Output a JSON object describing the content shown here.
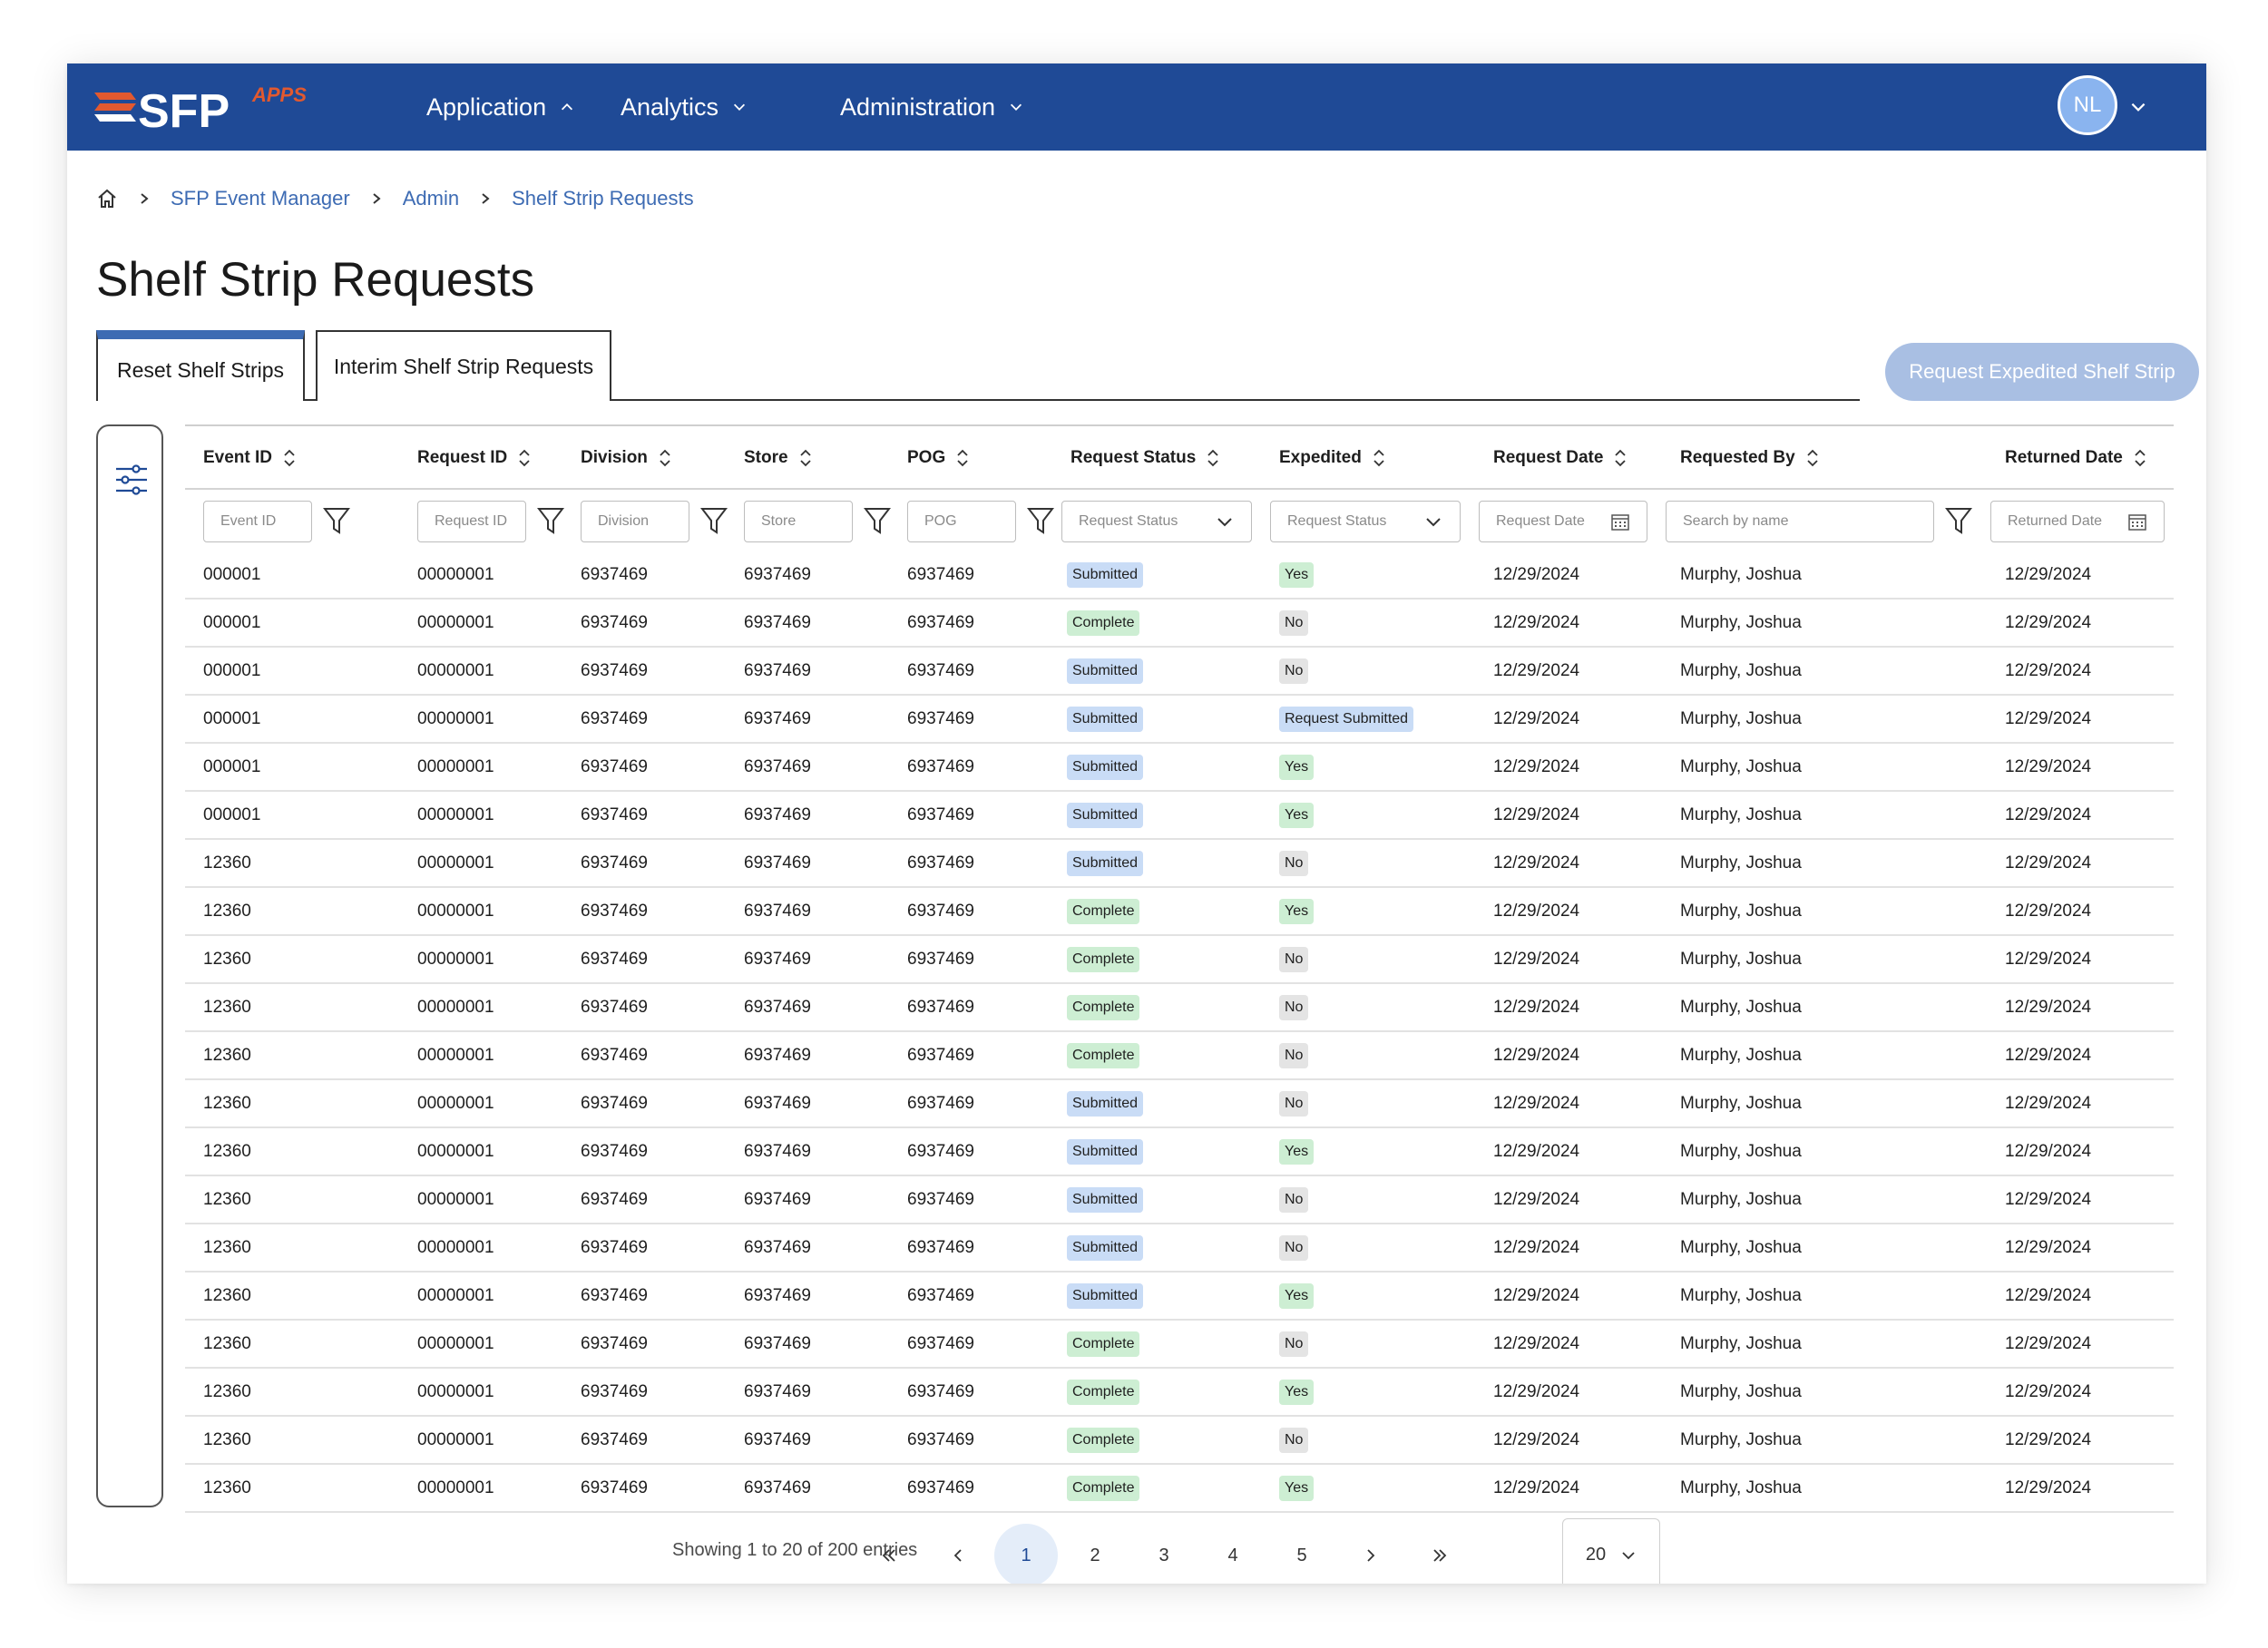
{
  "app": {
    "logo_text": "SFP",
    "logo_sub": "APPS",
    "nav": [
      {
        "label": "Application",
        "caret": "chevron-up"
      },
      {
        "label": "Analytics",
        "caret": "chevron-down"
      },
      {
        "label": "Administration",
        "caret": "chevron-down"
      }
    ],
    "user_initials": "NL"
  },
  "breadcrumb": {
    "items": [
      "SFP Event Manager",
      "Admin",
      "Shelf Strip Requests"
    ]
  },
  "page_title": "Shelf Strip Requests",
  "tabs": [
    {
      "label": "Reset Shelf Strips",
      "active": true
    },
    {
      "label": "Interim Shelf Strip Requests",
      "active": false
    }
  ],
  "primary_action": "Request Expedited Shelf Strip",
  "table": {
    "columns": [
      "Event ID",
      "Request ID",
      "Division",
      "Store",
      "POG",
      "Request Status",
      "Expedited",
      "Request Date",
      "Requested By",
      "Returned Date"
    ],
    "filters": {
      "event_id": "Event ID",
      "request_id": "Request ID",
      "division": "Division",
      "store": "Store",
      "pog": "POG",
      "request_status": "Request Status",
      "expedited": "Request Status",
      "request_date": "Request Date",
      "requested_by": "Search by name",
      "returned_date": "Returned Date"
    },
    "rows": [
      [
        "000001",
        "00000001",
        "6937469",
        "6937469",
        "6937469",
        "Submitted",
        "Yes",
        "12/29/2024",
        "Murphy, Joshua",
        "12/29/2024"
      ],
      [
        "000001",
        "00000001",
        "6937469",
        "6937469",
        "6937469",
        "Complete",
        "No",
        "12/29/2024",
        "Murphy, Joshua",
        "12/29/2024"
      ],
      [
        "000001",
        "00000001",
        "6937469",
        "6937469",
        "6937469",
        "Submitted",
        "No",
        "12/29/2024",
        "Murphy, Joshua",
        "12/29/2024"
      ],
      [
        "000001",
        "00000001",
        "6937469",
        "6937469",
        "6937469",
        "Submitted",
        "Request Submitted",
        "12/29/2024",
        "Murphy, Joshua",
        "12/29/2024"
      ],
      [
        "000001",
        "00000001",
        "6937469",
        "6937469",
        "6937469",
        "Submitted",
        "Yes",
        "12/29/2024",
        "Murphy, Joshua",
        "12/29/2024"
      ],
      [
        "000001",
        "00000001",
        "6937469",
        "6937469",
        "6937469",
        "Submitted",
        "Yes",
        "12/29/2024",
        "Murphy, Joshua",
        "12/29/2024"
      ],
      [
        "12360",
        "00000001",
        "6937469",
        "6937469",
        "6937469",
        "Submitted",
        "No",
        "12/29/2024",
        "Murphy, Joshua",
        "12/29/2024"
      ],
      [
        "12360",
        "00000001",
        "6937469",
        "6937469",
        "6937469",
        "Complete",
        "Yes",
        "12/29/2024",
        "Murphy, Joshua",
        "12/29/2024"
      ],
      [
        "12360",
        "00000001",
        "6937469",
        "6937469",
        "6937469",
        "Complete",
        "No",
        "12/29/2024",
        "Murphy, Joshua",
        "12/29/2024"
      ],
      [
        "12360",
        "00000001",
        "6937469",
        "6937469",
        "6937469",
        "Complete",
        "No",
        "12/29/2024",
        "Murphy, Joshua",
        "12/29/2024"
      ],
      [
        "12360",
        "00000001",
        "6937469",
        "6937469",
        "6937469",
        "Complete",
        "No",
        "12/29/2024",
        "Murphy, Joshua",
        "12/29/2024"
      ],
      [
        "12360",
        "00000001",
        "6937469",
        "6937469",
        "6937469",
        "Submitted",
        "No",
        "12/29/2024",
        "Murphy, Joshua",
        "12/29/2024"
      ],
      [
        "12360",
        "00000001",
        "6937469",
        "6937469",
        "6937469",
        "Submitted",
        "Yes",
        "12/29/2024",
        "Murphy, Joshua",
        "12/29/2024"
      ],
      [
        "12360",
        "00000001",
        "6937469",
        "6937469",
        "6937469",
        "Submitted",
        "No",
        "12/29/2024",
        "Murphy, Joshua",
        "12/29/2024"
      ],
      [
        "12360",
        "00000001",
        "6937469",
        "6937469",
        "6937469",
        "Submitted",
        "No",
        "12/29/2024",
        "Murphy, Joshua",
        "12/29/2024"
      ],
      [
        "12360",
        "00000001",
        "6937469",
        "6937469",
        "6937469",
        "Submitted",
        "Yes",
        "12/29/2024",
        "Murphy, Joshua",
        "12/29/2024"
      ],
      [
        "12360",
        "00000001",
        "6937469",
        "6937469",
        "6937469",
        "Complete",
        "No",
        "12/29/2024",
        "Murphy, Joshua",
        "12/29/2024"
      ],
      [
        "12360",
        "00000001",
        "6937469",
        "6937469",
        "6937469",
        "Complete",
        "Yes",
        "12/29/2024",
        "Murphy, Joshua",
        "12/29/2024"
      ],
      [
        "12360",
        "00000001",
        "6937469",
        "6937469",
        "6937469",
        "Complete",
        "No",
        "12/29/2024",
        "Murphy, Joshua",
        "12/29/2024"
      ],
      [
        "12360",
        "00000001",
        "6937469",
        "6937469",
        "6937469",
        "Complete",
        "Yes",
        "12/29/2024",
        "Murphy, Joshua",
        "12/29/2024"
      ]
    ]
  },
  "pagination": {
    "summary": "Showing 1 to 20 of 200 entries",
    "pages": [
      "1",
      "2",
      "3",
      "4",
      "5"
    ],
    "current": "1",
    "page_size": "20"
  },
  "colors": {
    "nav_bg": "#1f4a96",
    "link": "#3d6bb3",
    "badge_submitted": "#c9dcf6",
    "badge_complete": "#cdeed3",
    "badge_no": "#e4e4e4",
    "logo_accent": "#e2592f"
  },
  "icons": [
    "home-icon",
    "chevron-right-icon",
    "sort-icon",
    "filter-funnel-icon",
    "chevron-down-icon",
    "calendar-icon",
    "sliders-icon",
    "double-chevron-left-icon",
    "chevron-left-icon",
    "double-chevron-right-icon"
  ]
}
